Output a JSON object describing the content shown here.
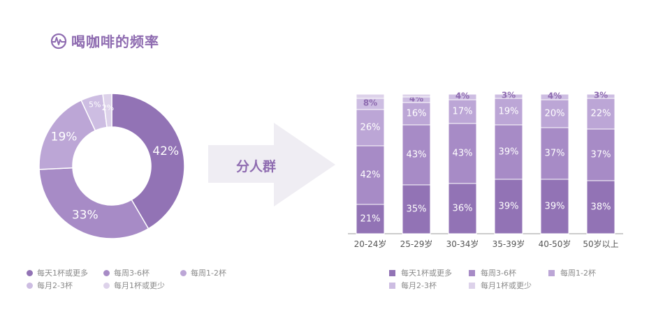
{
  "title": "喝咖啡的频率",
  "arrow_label": "分人群",
  "colors": {
    "title": "#8e6bb0",
    "series": [
      "#9273b5",
      "#a78bc6",
      "#bca6d6",
      "#cdbde2",
      "#ddd2ea"
    ],
    "arrow": "#efedf3",
    "axis": "#9a9a9a"
  },
  "pie_legend": [
    "每天1杯或更多",
    "每周3-6杯",
    "每周1-2杯",
    "每月2-3杯",
    "每月1杯或更少"
  ],
  "bar_legend": [
    "每天1杯或更多",
    "每周3-6杯",
    "每周1-2杯",
    "每月2-3杯",
    "每月1杯或更少"
  ],
  "chart_data": [
    {
      "type": "pie",
      "categories": [
        "每天1杯或更多",
        "每周3-6杯",
        "每周1-2杯",
        "每月2-3杯",
        "每月1杯或更少"
      ],
      "values": [
        42,
        33,
        19,
        5,
        2
      ],
      "labels": [
        "42%",
        "33%",
        "19%",
        "5%",
        "2%"
      ]
    },
    {
      "type": "bar",
      "stacked": true,
      "categories": [
        "20-24岁",
        "25-29岁",
        "30-34岁",
        "35-39岁",
        "40-50岁",
        "50岁以上"
      ],
      "series": [
        {
          "name": "每天1杯或更多",
          "values": [
            21,
            35,
            36,
            39,
            39,
            38
          ],
          "labels": [
            "21%",
            "35%",
            "36%",
            "39%",
            "39%",
            "38%"
          ]
        },
        {
          "name": "每周3-6杯",
          "values": [
            42,
            43,
            43,
            39,
            37,
            37
          ],
          "labels": [
            "42%",
            "43%",
            "43%",
            "39%",
            "37%",
            "37%"
          ]
        },
        {
          "name": "每周1-2杯",
          "values": [
            26,
            16,
            17,
            19,
            20,
            22
          ],
          "labels": [
            "26%",
            "16%",
            "17%",
            "19%",
            "20%",
            "22%"
          ]
        },
        {
          "name": "每月2-3杯",
          "values": [
            8,
            4,
            4,
            3,
            4,
            3
          ],
          "labels": [
            "8%",
            "4%",
            "4%",
            "3%",
            "4%",
            "3%"
          ]
        },
        {
          "name": "每月1杯或更少",
          "values": [
            3,
            2,
            0,
            0,
            0,
            0
          ],
          "labels": [
            "",
            "",
            "",
            "",
            "",
            ""
          ]
        }
      ],
      "ylim": [
        0,
        100
      ]
    }
  ]
}
